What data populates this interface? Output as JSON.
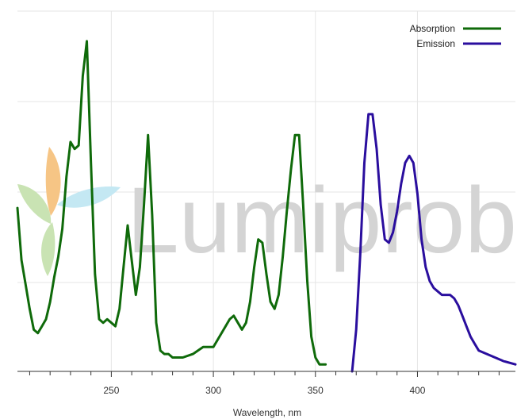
{
  "watermark": {
    "text": "Lumiprobe"
  },
  "colors": {
    "absorption": "#0f6a0a",
    "emission": "#2a0e9e",
    "grid": "#e6e6e6",
    "axis": "#333333",
    "watermark_text": "#d4d4d4",
    "watermark_orange": "#f6c585",
    "watermark_green": "#c9e3b3",
    "watermark_blue": "#c4e8f3"
  },
  "chart_data": {
    "type": "line",
    "xlabel": "Wavelength, nm",
    "ylabel": "",
    "xlim": [
      204,
      448
    ],
    "ylim": [
      0,
      1
    ],
    "xticks": [
      250,
      300,
      350,
      400
    ],
    "grid": true,
    "legend_position": "top-right",
    "series": [
      {
        "name": "Absorption",
        "x": [
          204,
          206,
          208,
          210,
          212,
          214,
          216,
          218,
          220,
          222,
          224,
          226,
          228,
          230,
          232,
          234,
          236,
          238,
          240,
          242,
          244,
          246,
          248,
          250,
          252,
          254,
          256,
          258,
          260,
          262,
          264,
          266,
          268,
          270,
          272,
          274,
          276,
          278,
          280,
          282,
          285,
          290,
          295,
          300,
          305,
          308,
          310,
          312,
          314,
          316,
          318,
          320,
          322,
          324,
          326,
          328,
          330,
          332,
          334,
          336,
          338,
          340,
          342,
          344,
          346,
          348,
          350,
          352,
          355
        ],
        "y": [
          0.47,
          0.32,
          0.25,
          0.18,
          0.12,
          0.11,
          0.13,
          0.15,
          0.2,
          0.27,
          0.33,
          0.41,
          0.56,
          0.66,
          0.64,
          0.65,
          0.85,
          0.95,
          0.6,
          0.28,
          0.15,
          0.14,
          0.15,
          0.14,
          0.13,
          0.18,
          0.3,
          0.42,
          0.32,
          0.22,
          0.3,
          0.48,
          0.68,
          0.45,
          0.14,
          0.06,
          0.05,
          0.05,
          0.04,
          0.04,
          0.04,
          0.05,
          0.07,
          0.07,
          0.12,
          0.15,
          0.16,
          0.14,
          0.12,
          0.14,
          0.2,
          0.3,
          0.38,
          0.37,
          0.28,
          0.2,
          0.18,
          0.22,
          0.33,
          0.46,
          0.58,
          0.68,
          0.68,
          0.48,
          0.26,
          0.1,
          0.04,
          0.02,
          0.02
        ]
      },
      {
        "name": "Emission",
        "x": [
          368,
          370,
          372,
          374,
          376,
          378,
          380,
          382,
          384,
          386,
          388,
          390,
          392,
          394,
          396,
          398,
          400,
          402,
          404,
          406,
          408,
          410,
          412,
          414,
          416,
          418,
          420,
          422,
          424,
          426,
          428,
          430,
          434,
          438,
          442,
          448
        ],
        "y": [
          0,
          0.12,
          0.34,
          0.6,
          0.74,
          0.74,
          0.64,
          0.48,
          0.38,
          0.37,
          0.4,
          0.46,
          0.54,
          0.6,
          0.62,
          0.6,
          0.51,
          0.38,
          0.3,
          0.26,
          0.24,
          0.23,
          0.22,
          0.22,
          0.22,
          0.21,
          0.19,
          0.16,
          0.13,
          0.1,
          0.08,
          0.06,
          0.05,
          0.04,
          0.03,
          0.02
        ]
      }
    ]
  }
}
